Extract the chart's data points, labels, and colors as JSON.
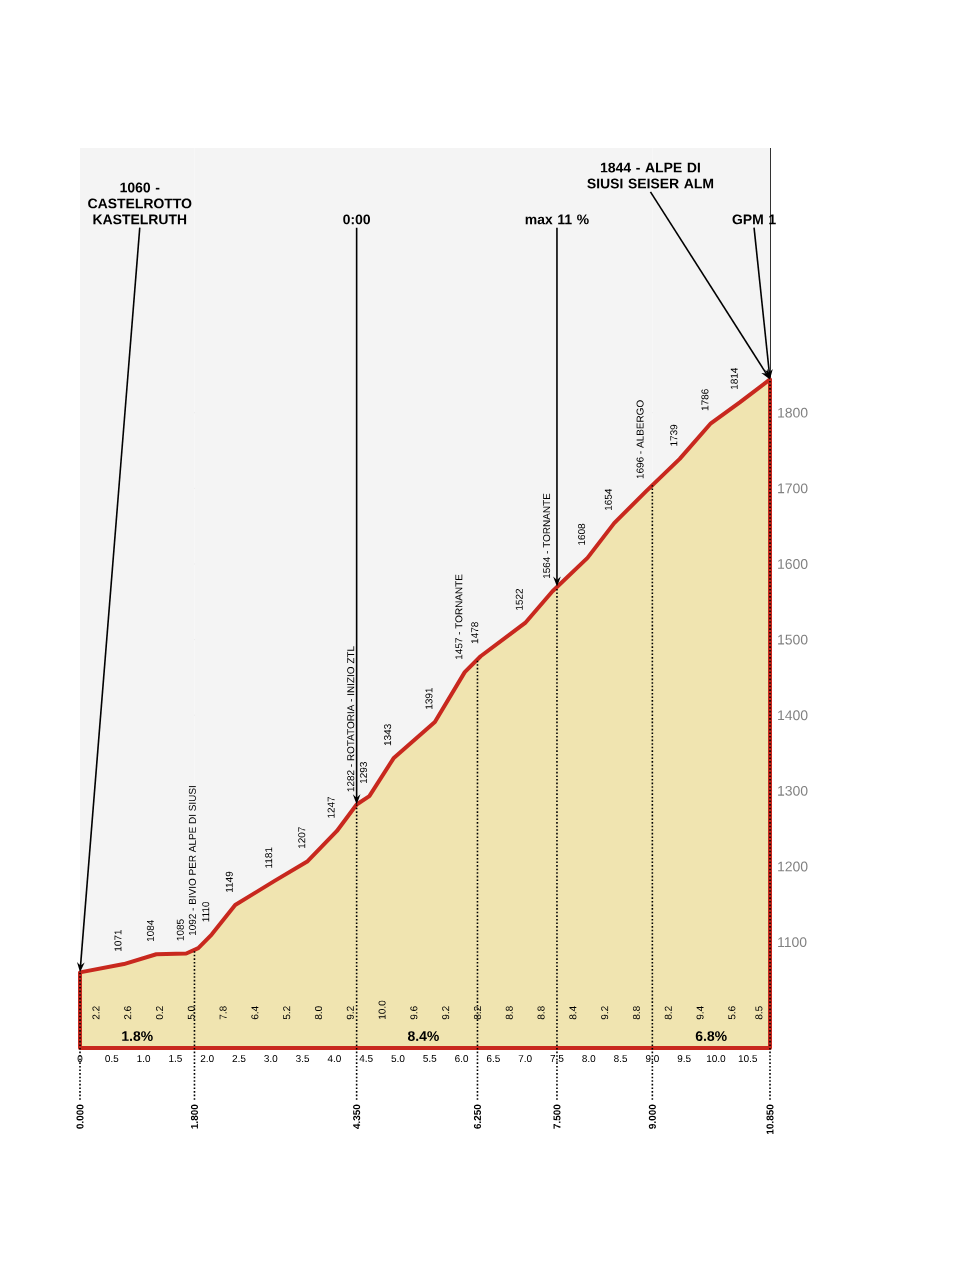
{
  "chart_data": {
    "type": "area",
    "x": [
      0,
      0.69,
      1.2,
      1.67,
      1.86,
      2.07,
      2.44,
      3.06,
      3.58,
      4.04,
      4.35,
      4.55,
      4.93,
      5.58,
      6.05,
      6.3,
      7.0,
      7.43,
      7.98,
      8.4,
      8.9,
      9.43,
      9.92,
      10.38,
      10.85
    ],
    "series": [
      {
        "color": "#f0e4b0",
        "values": [
          1060,
          1071,
          1084,
          1085,
          1092,
          1110,
          1149,
          1181,
          1207,
          1247,
          1282,
          1293,
          1343,
          1391,
          1457,
          1478,
          1522,
          1564,
          1608,
          1654,
          1696,
          1739,
          1786,
          1814,
          1844
        ],
        "value_labels": [
          null,
          "1071",
          "1084",
          "1085",
          "1092 - BIVIO PER ALPE DI SIUSI",
          "1110",
          "1149",
          "1181",
          "1207",
          "1247",
          "1282 - ROTATORIA - INIZIO ZTL",
          "1293",
          "1343",
          "1391",
          "1457 - TORNANTE",
          "1478",
          "1522",
          "1564 - TORNANTE",
          "1608",
          "1654",
          "1696 - ALBERGO",
          "1739",
          "1786",
          "1814",
          null
        ]
      }
    ],
    "xlim": [
      0,
      10.85
    ],
    "ylim": [
      960,
      2150
    ],
    "xticks": [
      {
        "value": 0,
        "label": "0"
      },
      0.5,
      {
        "value": 1,
        "label": "1.0"
      },
      1.5,
      {
        "value": 2,
        "label": "2.0"
      },
      2.5,
      {
        "value": 3,
        "label": "3.0"
      },
      3.5,
      {
        "value": 4,
        "label": "4.0"
      },
      4.5,
      {
        "value": 5,
        "label": "5.0"
      },
      5.5,
      {
        "value": 6,
        "label": "6.0"
      },
      6.5,
      {
        "value": 7,
        "label": "7.0"
      },
      7.5,
      {
        "value": 8,
        "label": "8.0"
      },
      8.5,
      {
        "value": 9,
        "label": "9.0"
      },
      9.5,
      {
        "value": 10,
        "label": "10.0"
      },
      10.5
    ],
    "yticks": [
      1100,
      1200,
      1300,
      1400,
      1500,
      1600,
      1700,
      1800
    ],
    "grid": "y",
    "annotations": [
      {
        "text": "1060 - CASTELROTTO KASTELRUTH",
        "x": 0,
        "y": 1060
      },
      {
        "text": "0:00",
        "x": 4.35,
        "y": 1282
      },
      {
        "text": "max 11 %",
        "x": 7.5,
        "y": 1570
      },
      {
        "text": "GPM 1",
        "x": 10.85,
        "y": 1844
      },
      {
        "text": "1844 - ALPE DI SIUSI SEISER ALM",
        "x": 10.85,
        "y": 1844
      },
      "2.2",
      "2.6",
      "0.2",
      "5.0",
      "7.8",
      "6.4",
      "5.2",
      "8.0",
      "9.2",
      "10.0",
      "9.6",
      "9.2",
      "8.2",
      "8.8",
      "8.8",
      "8.4",
      "9.2",
      "8.8",
      "8.2",
      "9.4",
      "5.6",
      "8.5"
    ],
    "bands": [
      {
        "axis": "x",
        "from": 0,
        "to": 1.8,
        "label": "1.8%"
      },
      {
        "axis": "x",
        "from": 1.8,
        "to": 9.0,
        "label": "8.4%"
      },
      {
        "axis": "x",
        "from": 9.0,
        "to": 10.85,
        "label": "6.8%"
      }
    ],
    "ref_lines": [
      {
        "axis": "x",
        "value": 0,
        "label": "0.000",
        "line_style": "dotted"
      },
      {
        "axis": "x",
        "value": 1.8,
        "label": "1.800",
        "line_style": "dotted"
      },
      {
        "axis": "x",
        "value": 4.35,
        "label": "4.350",
        "line_style": "dotted"
      },
      {
        "axis": "x",
        "value": 6.25,
        "label": "6.250",
        "line_style": "dotted"
      },
      {
        "axis": "x",
        "value": 7.5,
        "label": "7.500",
        "line_style": "dotted"
      },
      {
        "axis": "x",
        "value": 9.0,
        "label": "9.000",
        "line_style": "dotted"
      },
      {
        "axis": "x",
        "value": 10.85,
        "label": "10.850",
        "line_style": "dotted"
      }
    ]
  }
}
